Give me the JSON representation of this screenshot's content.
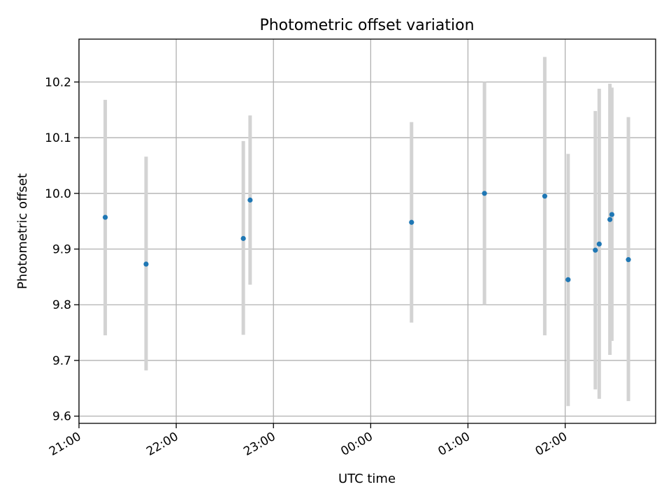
{
  "chart_data": {
    "type": "scatter",
    "title": "Photometric offset variation",
    "xlabel": "UTC time",
    "ylabel": "Photometric offset",
    "x_ticks": [
      {
        "h": 21.0,
        "label": "21:00"
      },
      {
        "h": 22.0,
        "label": "22:00"
      },
      {
        "h": 23.0,
        "label": "23:00"
      },
      {
        "h": 24.0,
        "label": "00:00"
      },
      {
        "h": 25.0,
        "label": "01:00"
      },
      {
        "h": 26.0,
        "label": "02:00"
      }
    ],
    "y_ticks": [
      {
        "v": 9.6,
        "label": "9.6"
      },
      {
        "v": 9.7,
        "label": "9.7"
      },
      {
        "v": 9.8,
        "label": "9.8"
      },
      {
        "v": 9.9,
        "label": "9.9"
      },
      {
        "v": 10.0,
        "label": "10.0"
      },
      {
        "v": 10.1,
        "label": "10.1"
      },
      {
        "v": 10.2,
        "label": "10.2"
      }
    ],
    "xlim": [
      21.0,
      26.93
    ],
    "ylim": [
      9.587,
      10.277
    ],
    "grid": true,
    "point_color": "#1f77b4",
    "errorbar_color": "#d3d3d3",
    "points": [
      {
        "x": 21.27,
        "y": 9.957,
        "lo": 9.745,
        "hi": 10.168
      },
      {
        "x": 21.69,
        "y": 9.873,
        "lo": 9.682,
        "hi": 10.066
      },
      {
        "x": 22.69,
        "y": 9.919,
        "lo": 9.746,
        "hi": 10.094
      },
      {
        "x": 22.76,
        "y": 9.988,
        "lo": 9.836,
        "hi": 10.14
      },
      {
        "x": 24.42,
        "y": 9.948,
        "lo": 9.768,
        "hi": 10.128
      },
      {
        "x": 25.17,
        "y": 10.0,
        "lo": 9.8,
        "hi": 10.2
      },
      {
        "x": 25.79,
        "y": 9.995,
        "lo": 9.745,
        "hi": 10.245
      },
      {
        "x": 26.03,
        "y": 9.845,
        "lo": 9.618,
        "hi": 10.071
      },
      {
        "x": 26.31,
        "y": 9.898,
        "lo": 9.648,
        "hi": 10.148
      },
      {
        "x": 26.35,
        "y": 9.909,
        "lo": 9.631,
        "hi": 10.188
      },
      {
        "x": 26.46,
        "y": 9.953,
        "lo": 9.71,
        "hi": 10.197
      },
      {
        "x": 26.48,
        "y": 9.962,
        "lo": 9.735,
        "hi": 10.19
      },
      {
        "x": 26.65,
        "y": 9.881,
        "lo": 9.627,
        "hi": 10.137
      }
    ]
  }
}
